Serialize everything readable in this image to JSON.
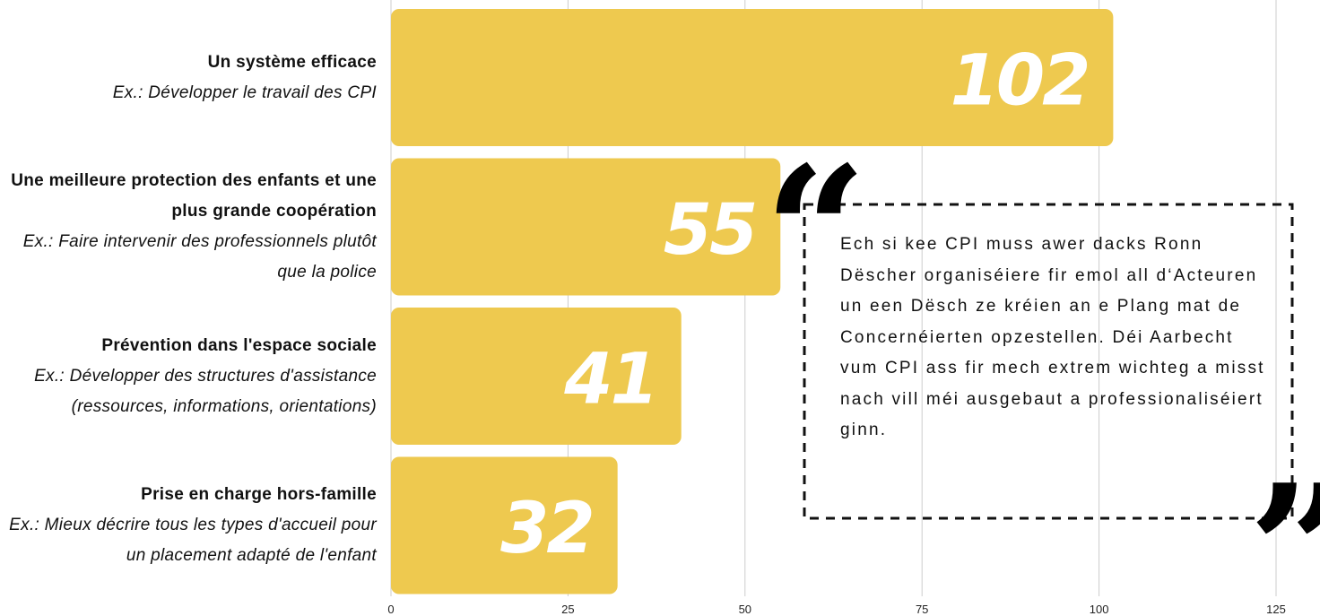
{
  "chart_data": {
    "type": "bar",
    "orientation": "horizontal",
    "categories": [
      "Un système efficace",
      "Une meilleure protection des enfants et une plus grande coopération",
      "Prévention dans l'espace sociale",
      "Prise en charge hors-famille"
    ],
    "examples": [
      "Ex.: Développer le travail des CPI",
      "Ex.: Faire intervenir des professionnels plutôt que la police",
      "Ex.: Développer des structures d'assistance (ressources, informations, orientations)",
      "Ex.: Mieux décrire tous les types d'accueil pour un placement adapté de l'enfant"
    ],
    "values": [
      102,
      55,
      41,
      32
    ],
    "color": "#eec94f",
    "xlim": [
      0,
      125
    ],
    "xticks": [
      0,
      25,
      50,
      75,
      100,
      125
    ],
    "grid": true,
    "quote": {
      "open": "“",
      "close": "”",
      "text": "Ech si kee CPI muss awer dacks Ronn Dëscher organiséiere fir emol all d‘Acteuren un een Dësch ze kréien an e Plang mat de Concernéierten opzestellen. Déi Aarbecht vum CPI ass fir mech extrem wichteg a misst nach vill méi ausgebaut a professionaliséiert ginn."
    }
  }
}
